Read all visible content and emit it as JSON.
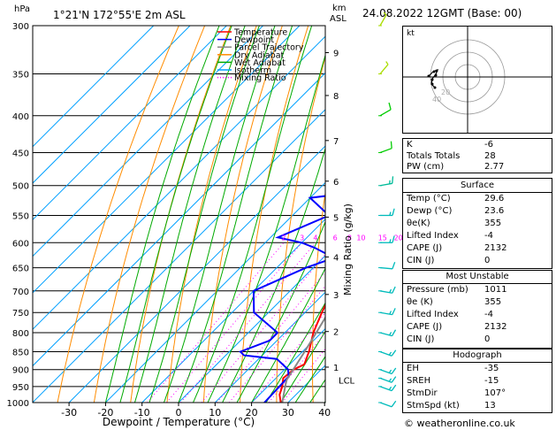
{
  "header": {
    "left_unit": "hPa",
    "location": "1°21'N 172°55'E  2m ASL",
    "km_label": "km",
    "asl_label": "ASL",
    "datetime": "24.08.2022  12GMT  (Base: 00)"
  },
  "legend": [
    {
      "label": "Temperature",
      "color": "#ff0000",
      "style": "solid"
    },
    {
      "label": "Dewpoint",
      "color": "#0000ff",
      "style": "solid"
    },
    {
      "label": "Parcel Trajectory",
      "color": "#888888",
      "style": "solid"
    },
    {
      "label": "Dry Adiabat",
      "color": "#ff8c00",
      "style": "solid"
    },
    {
      "label": "Wet Adiabat",
      "color": "#00aa00",
      "style": "solid"
    },
    {
      "label": "Isotherm",
      "color": "#00a0ff",
      "style": "solid"
    },
    {
      "label": "Mixing Ratio",
      "color": "#ff00ff",
      "style": "dotted"
    }
  ],
  "chart_data": {
    "type": "line",
    "xlabel": "Dewpoint / Temperature (°C)",
    "ylabel_right": "Mixing Ratio (g/kg)",
    "x_ticks": [
      -30,
      -20,
      -10,
      0,
      10,
      20,
      30,
      40
    ],
    "pressure_ticks": [
      300,
      350,
      400,
      450,
      500,
      550,
      600,
      650,
      700,
      750,
      800,
      850,
      900,
      950,
      1000
    ],
    "km_ticks": [
      {
        "km": "1",
        "p": 893
      },
      {
        "km": "2",
        "p": 797
      },
      {
        "km": "3",
        "p": 708
      },
      {
        "km": "4",
        "p": 628
      },
      {
        "km": "5",
        "p": 553
      },
      {
        "km": "6",
        "p": 493
      },
      {
        "km": "7",
        "p": 433
      },
      {
        "km": "8",
        "p": 375
      },
      {
        "km": "9",
        "p": 327
      }
    ],
    "lcl_label": "LCL",
    "lcl_p": 930,
    "mixing_ratio_labels": [
      "2",
      "3",
      "4",
      "6",
      "8",
      "10",
      "15",
      "20",
      "25"
    ],
    "series": [
      {
        "name": "Temperature",
        "color": "#ff0000",
        "points": [
          [
            1011,
            29.6
          ],
          [
            1000,
            28
          ],
          [
            975,
            25.5
          ],
          [
            950,
            24
          ],
          [
            925,
            22
          ],
          [
            900,
            22.5
          ],
          [
            885,
            24
          ],
          [
            850,
            21.8
          ],
          [
            800,
            17.8
          ],
          [
            750,
            14.6
          ],
          [
            700,
            11.5
          ],
          [
            650,
            8.2
          ],
          [
            600,
            4.5
          ],
          [
            550,
            0.4
          ],
          [
            500,
            -4.6
          ],
          [
            450,
            -9.6
          ],
          [
            425,
            -12.6
          ],
          [
            400,
            -16
          ],
          [
            380,
            -19
          ],
          [
            360,
            -22
          ],
          [
            340,
            -25.6
          ],
          [
            320,
            -29
          ],
          [
            300,
            -33
          ]
        ]
      },
      {
        "name": "Dewpoint",
        "color": "#0000ff",
        "points": [
          [
            1011,
            23.6
          ],
          [
            1000,
            23.5
          ],
          [
            950,
            23.2
          ],
          [
            920,
            23
          ],
          [
            900,
            21
          ],
          [
            870,
            15
          ],
          [
            860,
            5
          ],
          [
            850,
            3
          ],
          [
            820,
            8
          ],
          [
            800,
            8
          ],
          [
            750,
            -4
          ],
          [
            700,
            -10
          ],
          [
            650,
            -2
          ],
          [
            630,
            3
          ],
          [
            610,
            -5
          ],
          [
            600,
            -10
          ],
          [
            590,
            -18
          ],
          [
            550,
            -10
          ],
          [
            520,
            -20
          ],
          [
            500,
            5
          ],
          [
            480,
            -18
          ],
          [
            450,
            -20
          ],
          [
            420,
            -14
          ],
          [
            400,
            -10
          ],
          [
            390,
            6
          ],
          [
            380,
            3
          ],
          [
            370,
            -1
          ],
          [
            360,
            -2
          ],
          [
            340,
            1
          ],
          [
            330,
            -8
          ],
          [
            320,
            -18
          ],
          [
            300,
            -26
          ]
        ]
      },
      {
        "name": "Parcel Trajectory",
        "color": "#888888",
        "points": [
          [
            1011,
            29.6
          ],
          [
            1000,
            28.4
          ],
          [
            950,
            24.8
          ],
          [
            930,
            23.4
          ],
          [
            900,
            22.4
          ],
          [
            850,
            20.6
          ],
          [
            800,
            18.6
          ],
          [
            750,
            16.4
          ],
          [
            700,
            14.0
          ],
          [
            650,
            11.3
          ],
          [
            600,
            8.3
          ],
          [
            550,
            4.9
          ],
          [
            500,
            1.0
          ],
          [
            450,
            -3.5
          ],
          [
            400,
            -9.0
          ],
          [
            350,
            -15.7
          ],
          [
            300,
            -24.0
          ]
        ]
      }
    ]
  },
  "hodograph": {
    "unit_label": "kt",
    "ring_labels": [
      "20",
      "40"
    ]
  },
  "wind_barbs": [
    {
      "p": 300,
      "dir": 30,
      "spd": 5,
      "color": "#aadd00"
    },
    {
      "p": 350,
      "dir": 40,
      "spd": 5,
      "color": "#aadd00"
    },
    {
      "p": 400,
      "dir": 60,
      "spd": 10,
      "color": "#00cc00"
    },
    {
      "p": 450,
      "dir": 70,
      "spd": 10,
      "color": "#00cc00"
    },
    {
      "p": 500,
      "dir": 80,
      "spd": 15,
      "color": "#00bb99"
    },
    {
      "p": 550,
      "dir": 90,
      "spd": 15,
      "color": "#00bbbb"
    },
    {
      "p": 600,
      "dir": 90,
      "spd": 15,
      "color": "#00bbbb"
    },
    {
      "p": 650,
      "dir": 95,
      "spd": 10,
      "color": "#00bbbb"
    },
    {
      "p": 700,
      "dir": 100,
      "spd": 15,
      "color": "#00bbbb"
    },
    {
      "p": 750,
      "dir": 100,
      "spd": 15,
      "color": "#00bbbb"
    },
    {
      "p": 800,
      "dir": 105,
      "spd": 15,
      "color": "#00bbbb"
    },
    {
      "p": 850,
      "dir": 110,
      "spd": 15,
      "color": "#00bbbb"
    },
    {
      "p": 900,
      "dir": 110,
      "spd": 15,
      "color": "#00bbbb"
    },
    {
      "p": 925,
      "dir": 110,
      "spd": 15,
      "color": "#00bbbb"
    },
    {
      "p": 950,
      "dir": 110,
      "spd": 15,
      "color": "#00bbbb"
    },
    {
      "p": 1000,
      "dir": 110,
      "spd": 10,
      "color": "#00bbbb"
    }
  ],
  "indices": [
    {
      "k": "K",
      "v": "-6"
    },
    {
      "k": "Totals Totals",
      "v": "28"
    },
    {
      "k": "PW (cm)",
      "v": "2.77"
    }
  ],
  "surface": {
    "title": "Surface",
    "rows": [
      {
        "k": "Temp (°C)",
        "v": "29.6"
      },
      {
        "k": "Dewp (°C)",
        "v": "23.6"
      },
      {
        "k": "θe(K)",
        "v": "355"
      },
      {
        "k": "Lifted Index",
        "v": "-4"
      },
      {
        "k": "CAPE (J)",
        "v": "2132"
      },
      {
        "k": "CIN (J)",
        "v": "0"
      }
    ]
  },
  "most_unstable": {
    "title": "Most Unstable",
    "rows": [
      {
        "k": "Pressure (mb)",
        "v": "1011"
      },
      {
        "k": "θe (K)",
        "v": "355"
      },
      {
        "k": "Lifted Index",
        "v": "-4"
      },
      {
        "k": "CAPE (J)",
        "v": "2132"
      },
      {
        "k": "CIN (J)",
        "v": "0"
      }
    ]
  },
  "hodograph_table": {
    "title": "Hodograph",
    "rows": [
      {
        "k": "EH",
        "v": "-35"
      },
      {
        "k": "SREH",
        "v": "-15"
      },
      {
        "k": "StmDir",
        "v": "107°"
      },
      {
        "k": "StmSpd (kt)",
        "v": "13"
      }
    ]
  },
  "footer": {
    "copyright": "© weatheronline.co.uk"
  }
}
